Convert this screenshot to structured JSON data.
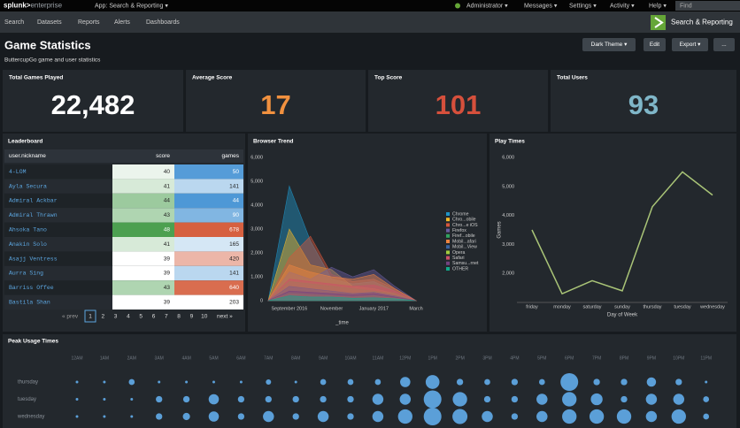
{
  "topbar": {
    "logo_brand": "splunk>",
    "logo_product": "enterprise",
    "app": "App: Search & Reporting ▾",
    "user": "Administrator ▾",
    "menus": [
      "Messages ▾",
      "Settings ▾",
      "Activity ▾",
      "Help ▾"
    ],
    "search": "Find"
  },
  "nav": {
    "items": [
      "Search",
      "Datasets",
      "Reports",
      "Alerts",
      "Dashboards"
    ],
    "app_title": "Search & Reporting"
  },
  "header": {
    "title": "Game Statistics",
    "subtitle": "ButtercupGo game and user statistics",
    "buttons": [
      "Dark Theme ▾",
      "Edit",
      "Export ▾",
      "..."
    ]
  },
  "kpis": [
    {
      "label": "Total Games Played",
      "value": "22,482",
      "color": "#ffffff"
    },
    {
      "label": "Average Score",
      "value": "17",
      "color": "#f1913f"
    },
    {
      "label": "Top Score",
      "value": "101",
      "color": "#d6503c"
    },
    {
      "label": "Total Users",
      "value": "93",
      "color": "#7fb6c8"
    }
  ],
  "leaderboard": {
    "title": "Leaderboard",
    "columns": [
      "user.nickname",
      "score",
      "games"
    ],
    "rows": [
      [
        "4-LOM",
        40,
        50
      ],
      [
        "Ayla Secura",
        41,
        141
      ],
      [
        "Admiral Ackbar",
        44,
        44
      ],
      [
        "Admiral Thrawn",
        43,
        90
      ],
      [
        "Ahsoka Tano",
        48,
        678
      ],
      [
        "Anakin Solo",
        41,
        165
      ],
      [
        "Asajj Ventress",
        39,
        420
      ],
      [
        "Aurra Sing",
        39,
        141
      ],
      [
        "Barriss Offee",
        43,
        640
      ],
      [
        "Bastila Shan",
        39,
        203
      ]
    ],
    "pagination": {
      "prev": "« prev",
      "pages": [
        "1",
        "2",
        "3",
        "4",
        "5",
        "6",
        "7",
        "8",
        "9",
        "10"
      ],
      "next": "next »"
    }
  },
  "browser_trend": {
    "type": "area",
    "title": "Browser Trend",
    "x_label": "_time",
    "categories": [
      null,
      "September 2016",
      null,
      "November",
      null,
      "January 2017",
      null,
      "March"
    ],
    "ylim": [
      0,
      6000
    ],
    "yticks": [
      0,
      {
        "value": 1000,
        "label": "1,000"
      },
      {
        "value": 2000,
        "label": "2,000"
      },
      {
        "value": 3000,
        "label": "3,000"
      },
      {
        "value": 4000,
        "label": "4,000"
      },
      {
        "value": 5000,
        "label": "5,000"
      },
      {
        "value": 6000,
        "label": "6,000"
      }
    ],
    "series": [
      {
        "name": "Chrome",
        "color": "#1e93c6",
        "values": [
          0,
          4800,
          2500,
          900,
          700,
          800,
          400,
          0
        ]
      },
      {
        "name": "Chro...obile",
        "color": "#f2b827",
        "values": [
          0,
          3000,
          1500,
          1300,
          600,
          500,
          300,
          0
        ]
      },
      {
        "name": "Chro...e iOS",
        "color": "#d6563c",
        "values": [
          0,
          1800,
          2700,
          1100,
          800,
          900,
          500,
          0
        ]
      },
      {
        "name": "Firefox",
        "color": "#6a5c9e",
        "values": [
          0,
          1200,
          900,
          1400,
          1000,
          1300,
          600,
          0
        ]
      },
      {
        "name": "Firef...obile",
        "color": "#31a35f",
        "values": [
          0,
          800,
          700,
          600,
          500,
          400,
          300,
          0
        ]
      },
      {
        "name": "Mobil...afari",
        "color": "#ed8440",
        "values": [
          0,
          1500,
          1200,
          1000,
          900,
          1100,
          500,
          0
        ]
      },
      {
        "name": "Mobil...View",
        "color": "#3863a0",
        "values": [
          0,
          600,
          500,
          400,
          300,
          350,
          200,
          0
        ]
      },
      {
        "name": "Opera",
        "color": "#a2cc3e",
        "values": [
          0,
          300,
          250,
          200,
          150,
          200,
          100,
          0
        ]
      },
      {
        "name": "Safari",
        "color": "#cc5068",
        "values": [
          0,
          900,
          800,
          700,
          600,
          650,
          400,
          0
        ]
      },
      {
        "name": "Samsu...rnet",
        "color": "#73427f",
        "values": [
          0,
          400,
          350,
          300,
          250,
          300,
          150,
          0
        ]
      },
      {
        "name": "OTHER",
        "color": "#11a88b",
        "values": [
          0,
          200,
          150,
          150,
          100,
          120,
          80,
          0
        ]
      }
    ]
  },
  "play_times": {
    "type": "line",
    "title": "Play Times",
    "x_label": "Day of Week",
    "y_label": "Games",
    "color": "#a9c477",
    "categories": [
      "friday",
      "monday",
      "saturday",
      "sunday",
      "thursday",
      "tuesday",
      "wednesday"
    ],
    "values": [
      3500,
      1300,
      1750,
      1400,
      4300,
      5500,
      4700
    ],
    "ylim": [
      1000,
      6000
    ],
    "yticks": [
      {
        "value": 2000,
        "label": "2,000"
      },
      {
        "value": 3000,
        "label": "3,000"
      },
      {
        "value": 4000,
        "label": "4,000"
      },
      {
        "value": 5000,
        "label": "5,000"
      },
      {
        "value": 6000,
        "label": "6,000"
      }
    ]
  },
  "peak_usage": {
    "type": "bubble",
    "title": "Peak Usage Times",
    "color": "#5b9fd8",
    "categories": [
      "12AM",
      "1AM",
      "2AM",
      "3AM",
      "4AM",
      "5AM",
      "6AM",
      "7AM",
      "8AM",
      "9AM",
      "10AM",
      "11AM",
      "12PM",
      "1PM",
      "2PM",
      "3PM",
      "4PM",
      "5PM",
      "6PM",
      "7PM",
      "8PM",
      "9PM",
      "10PM",
      "11PM"
    ],
    "series": [
      {
        "name": "thursday",
        "values": [
          2,
          2,
          10,
          2,
          2,
          2,
          2,
          8,
          2,
          10,
          10,
          10,
          30,
          55,
          12,
          10,
          12,
          10,
          90,
          12,
          12,
          25,
          12,
          2
        ]
      },
      {
        "name": "tuesday",
        "values": [
          2,
          2,
          2,
          12,
          12,
          30,
          12,
          12,
          12,
          12,
          12,
          35,
          35,
          90,
          60,
          12,
          12,
          35,
          60,
          40,
          12,
          35,
          35,
          10
        ]
      },
      {
        "name": "wednesday",
        "values": [
          2,
          2,
          2,
          12,
          15,
          30,
          12,
          35,
          12,
          35,
          12,
          35,
          60,
          90,
          65,
          35,
          12,
          35,
          60,
          60,
          60,
          35,
          60,
          10
        ]
      }
    ]
  }
}
